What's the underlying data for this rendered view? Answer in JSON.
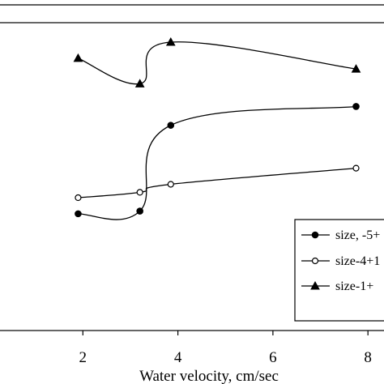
{
  "chart_data": {
    "type": "line",
    "title": "",
    "xlabel": "Water velocity, cm/sec",
    "ylabel": "",
    "xlim": [
      0,
      8.5
    ],
    "ylim": [
      0,
      100
    ],
    "x_ticks": [
      "2",
      "4",
      "6",
      "8"
    ],
    "grid": false,
    "legend_position": "right",
    "series": [
      {
        "name": "size, -5+",
        "marker": "filled-circle",
        "color": "#000000",
        "x": [
          1.9,
          3.2,
          3.85,
          7.75
        ],
        "y": [
          37.5,
          38.5,
          70.5,
          77.5
        ]
      },
      {
        "name": "size-4+1",
        "marker": "open-circle",
        "color": "#000000",
        "x": [
          1.9,
          3.2,
          3.85,
          7.75
        ],
        "y": [
          43.5,
          45.5,
          48.5,
          54.5
        ]
      },
      {
        "name": "size-1+",
        "marker": "filled-triangle",
        "color": "#000000",
        "x": [
          1.9,
          3.2,
          3.85,
          7.75
        ],
        "y": [
          95.5,
          86.0,
          101.5,
          91.5
        ]
      }
    ]
  }
}
